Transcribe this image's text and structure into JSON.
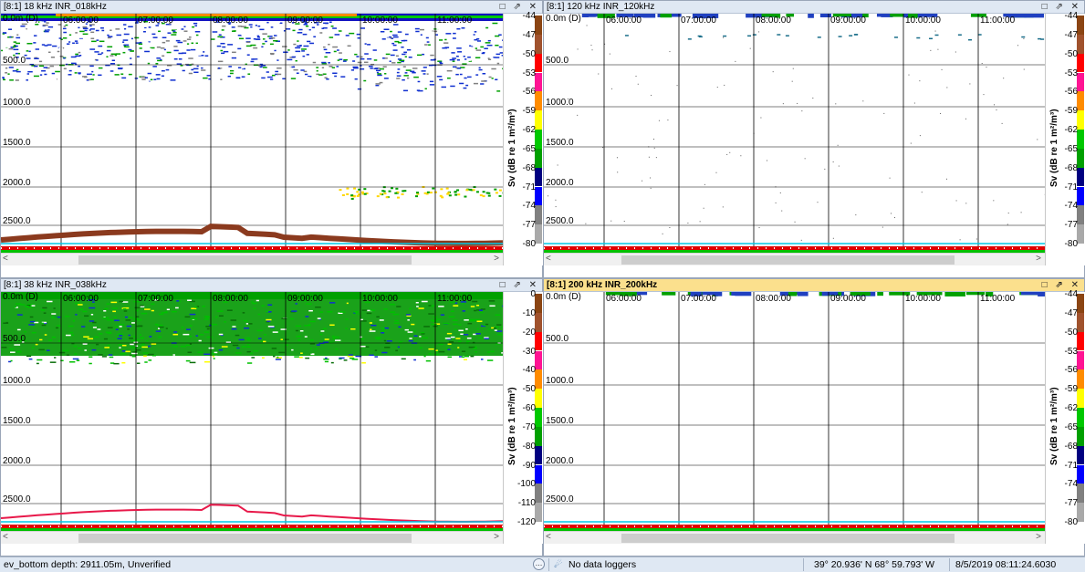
{
  "panels": [
    {
      "title": "[8:1] 18 kHz INR_018kHz",
      "active": false,
      "depth_labels": [
        "0.0m (D)",
        "500.0",
        "1000.0",
        "1500.0",
        "2000.0",
        "2500.0"
      ],
      "time_labels": [
        "06:00:00",
        "07:00:00",
        "08:00:00",
        "09:00:00",
        "10:00:00",
        "11:00:00"
      ],
      "echo_style": "blue",
      "bottom_color": "#8b3a1e",
      "colorbar": {
        "title": "Sv (dB re 1 m²/m³)",
        "ticks": [
          "-44",
          "-47",
          "-50",
          "-53",
          "-56",
          "-59",
          "-62",
          "-65",
          "-68",
          "-71",
          "-74",
          "-77",
          "-80"
        ]
      }
    },
    {
      "title": "[8:1] 120 kHz INR_120kHz",
      "active": false,
      "depth_labels": [
        "0.0m (D)",
        "500.0",
        "1000.0",
        "1500.0",
        "2000.0",
        "2500.0"
      ],
      "time_labels": [
        "06:00:00",
        "07:00:00",
        "08:00:00",
        "09:00:00",
        "10:00:00",
        "11:00:00"
      ],
      "echo_style": "sparse",
      "bottom_color": "",
      "colorbar": {
        "title": "Sv (dB re 1 m²/m³)",
        "ticks": [
          "-44",
          "-47",
          "-50",
          "-53",
          "-56",
          "-59",
          "-62",
          "-65",
          "-68",
          "-71",
          "-74",
          "-77",
          "-80"
        ]
      }
    },
    {
      "title": "[8:1] 38 kHz INR_038kHz",
      "active": false,
      "depth_labels": [
        "0.0m (D)",
        "500.0",
        "1000.0",
        "1500.0",
        "2000.0",
        "2500.0"
      ],
      "time_labels": [
        "06:00:00",
        "07:00:00",
        "08:00:00",
        "09:00:00",
        "10:00:00",
        "11:00:00"
      ],
      "echo_style": "green",
      "bottom_color": "#e8194a",
      "colorbar": {
        "title": "Sv (dB re 1 m²/m³)",
        "ticks": [
          "0",
          "-10",
          "-20",
          "-30",
          "-40",
          "-50",
          "-60",
          "-70",
          "-80",
          "-90",
          "-100",
          "-110",
          "-120"
        ]
      }
    },
    {
      "title": "[8:1] 200 kHz INR_200kHz",
      "active": true,
      "depth_labels": [
        "0.0m (D)",
        "500.0",
        "1000.0",
        "1500.0",
        "2000.0",
        "2500.0"
      ],
      "time_labels": [
        "06:00:00",
        "07:00:00",
        "08:00:00",
        "09:00:00",
        "10:00:00",
        "11:00:00"
      ],
      "echo_style": "none",
      "bottom_color": "",
      "colorbar": {
        "title": "Sv (dB re 1 m²/m³)",
        "ticks": [
          "-44",
          "-47",
          "-50",
          "-53",
          "-56",
          "-59",
          "-62",
          "-65",
          "-68",
          "-71",
          "-74",
          "-77",
          "-80"
        ]
      }
    }
  ],
  "window_controls": "□ ⇗ ✕",
  "scroll_left": "<",
  "scroll_right": ">",
  "colorscale": [
    "#8b4513",
    "#a0522d",
    "#ff0000",
    "#ff1493",
    "#ff8c00",
    "#ffff00",
    "#00c800",
    "#00a000",
    "#000080",
    "#0000ff",
    "#808080",
    "#a9a9a9"
  ],
  "status": {
    "message": "ev_bottom depth: 2911.05m, Unverified",
    "loggers": "No data loggers",
    "position": "39° 20.936' N 68° 59.793' W",
    "datetime": "8/5/2019 08:11:24.6030"
  },
  "icons": {
    "loggers": "satellite-icon",
    "more": "ellipsis-icon"
  }
}
